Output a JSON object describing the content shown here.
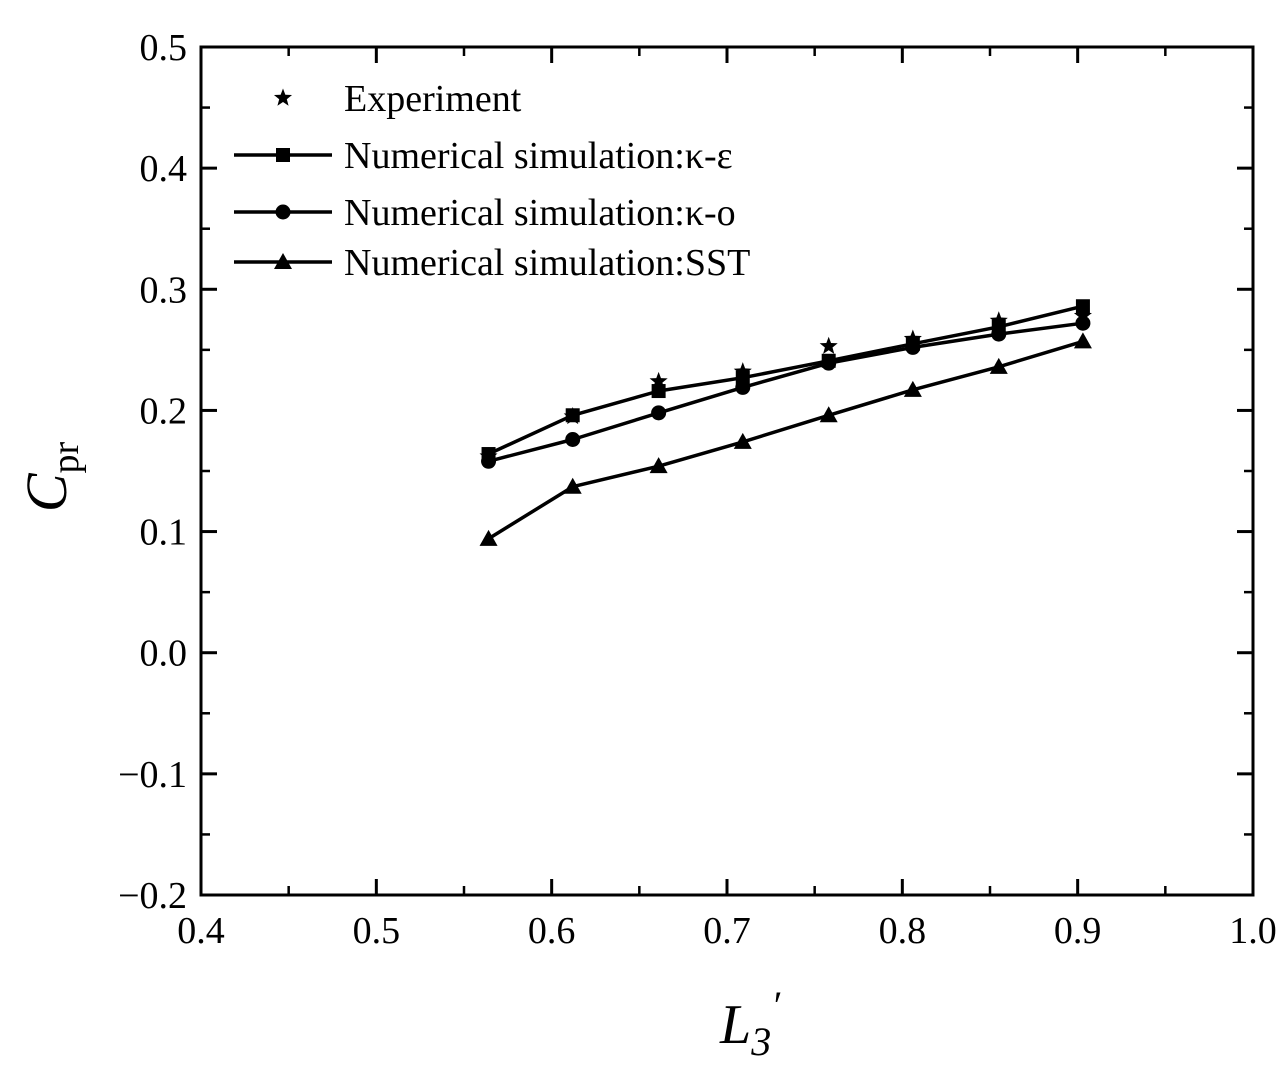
{
  "chart_data": {
    "type": "line",
    "title": "",
    "xlabel": {
      "main": "L",
      "sub": "3",
      "sup": "′"
    },
    "ylabel": {
      "main": "C",
      "sub": "pr"
    },
    "xlim": [
      0.4,
      1.0
    ],
    "ylim": [
      -0.2,
      0.5
    ],
    "x_ticks": [
      0.4,
      0.5,
      0.6,
      0.7,
      0.8,
      0.9,
      1.0
    ],
    "x_tick_labels": [
      "0.4",
      "0.5",
      "0.6",
      "0.7",
      "0.8",
      "0.9",
      "1.0"
    ],
    "y_ticks": [
      -0.2,
      -0.1,
      0.0,
      0.1,
      0.2,
      0.3,
      0.4,
      0.5
    ],
    "y_tick_labels": [
      "−0.2",
      "−0.1",
      "0.0",
      "0.1",
      "0.2",
      "0.3",
      "0.4",
      "0.5"
    ],
    "grid": false,
    "legend_position": "top-left",
    "series": [
      {
        "name": "Experiment",
        "marker": "star",
        "line": false,
        "x": [
          0.564,
          0.612,
          0.661,
          0.709,
          0.758,
          0.806,
          0.855,
          0.903
        ],
        "y": [
          0.162,
          0.195,
          0.224,
          0.232,
          0.253,
          0.259,
          0.274,
          0.278
        ]
      },
      {
        "name": "Numerical simulation:κ-ε",
        "marker": "square",
        "line": true,
        "x": [
          0.564,
          0.612,
          0.661,
          0.709,
          0.758,
          0.806,
          0.855,
          0.903
        ],
        "y": [
          0.164,
          0.196,
          0.216,
          0.227,
          0.241,
          0.255,
          0.269,
          0.286
        ]
      },
      {
        "name": "Numerical simulation:κ-o",
        "marker": "circle",
        "line": true,
        "x": [
          0.564,
          0.612,
          0.661,
          0.709,
          0.758,
          0.806,
          0.855,
          0.903
        ],
        "y": [
          0.158,
          0.176,
          0.198,
          0.219,
          0.239,
          0.252,
          0.263,
          0.272
        ]
      },
      {
        "name": "Numerical simulation:SST",
        "marker": "triangle",
        "line": true,
        "x": [
          0.564,
          0.612,
          0.661,
          0.709,
          0.758,
          0.806,
          0.855,
          0.903
        ],
        "y": [
          0.094,
          0.137,
          0.154,
          0.174,
          0.196,
          0.217,
          0.236,
          0.257
        ]
      }
    ]
  }
}
